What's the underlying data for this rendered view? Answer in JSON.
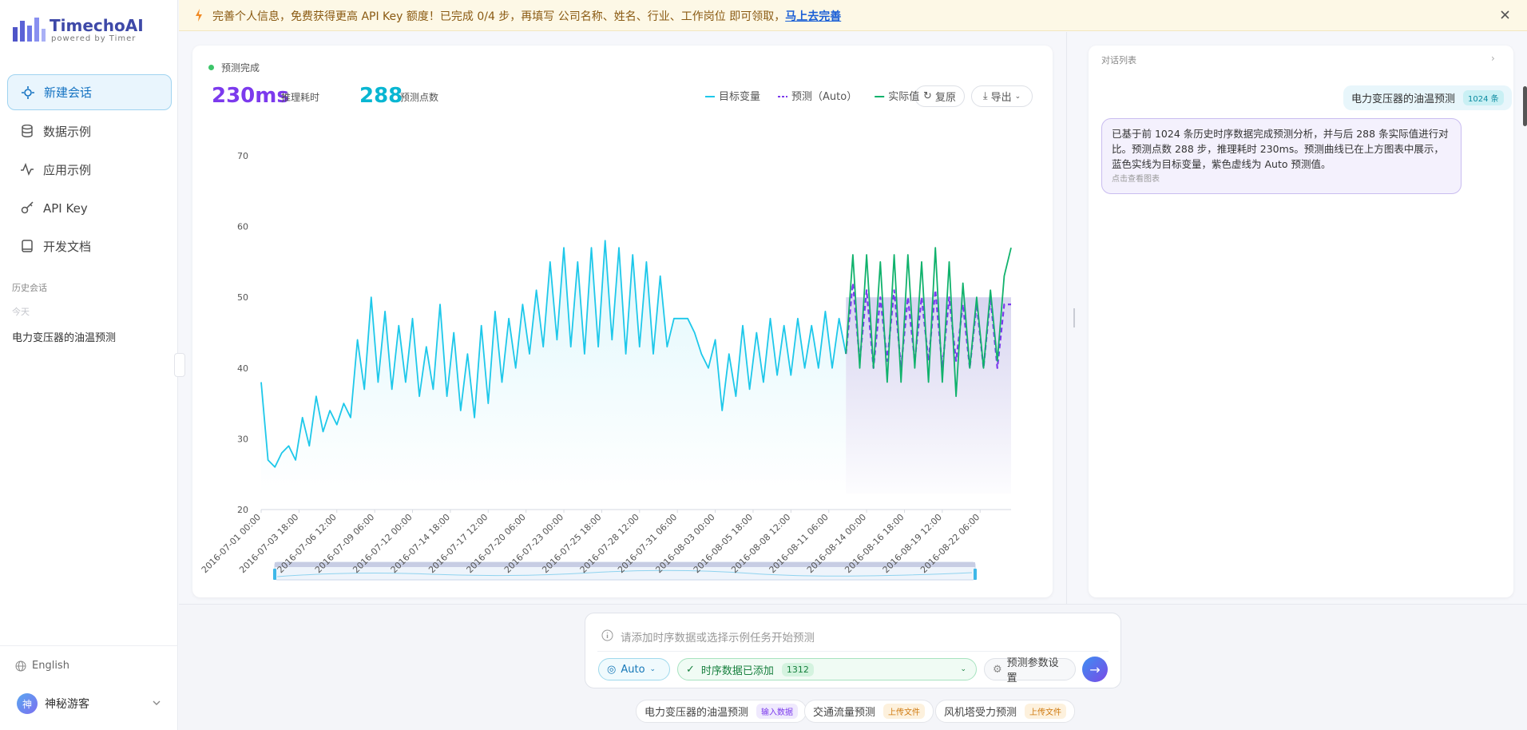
{
  "banner": {
    "text": "完善个人信息，免费获得更高 API Key 额度！已完成 0/4 步，再填写 公司名称、姓名、行业、工作岗位 即可领取，",
    "link": "马上去完善"
  },
  "sidebar": {
    "brand": "TimechoAI",
    "tagline": "powered by Timer",
    "nav": [
      "新建会话",
      "数据示例",
      "应用示例",
      "API Key",
      "开发文档"
    ],
    "history_title": "历史会话",
    "today": "今天",
    "history": [
      "电力变压器的油温预测"
    ],
    "language": "English",
    "user_avatar": "神",
    "user": "神秘游客"
  },
  "chart_panel": {
    "status": "预测完成",
    "stats": [
      {
        "value": "230ms",
        "label": "推理耗时"
      },
      {
        "value": "288",
        "label": "预测点数"
      }
    ],
    "buttons": [
      "复原",
      "导出"
    ]
  },
  "chat": {
    "title": "对话列表",
    "user_message": "电力变压器的油温预测",
    "user_badge": "1024 条",
    "reply": "已基于前 1024 条历史时序数据完成预测分析，并与后 288 条实际值进行对比。预测点数 288 步，推理耗时 230ms。预测曲线已在上方图表中展示，蓝色实线为目标变量，紫色虚线为 Auto 预测值。",
    "reply_hint": "点击查看图表"
  },
  "input": {
    "placeholder": "请添加时序数据或选择示例任务开始预测",
    "model": "Auto",
    "data_status": "时序数据已添加",
    "data_count": "1312",
    "settings": "预测参数设置"
  },
  "examples": [
    {
      "label": "电力变压器的油温预测",
      "tag": "输入数据"
    },
    {
      "label": "交通流量预测",
      "tag": "上传文件"
    },
    {
      "label": "风机塔受力预测",
      "tag": "上传文件"
    }
  ],
  "chart_data": {
    "type": "line",
    "legend": "top-right",
    "grid": false,
    "x": [
      "2016-07-01 00:00",
      "2016-07-01 12:00",
      "2016-07-02 00:00",
      "2016-07-02 12:00",
      "2016-07-03 00:00",
      "2016-07-03 12:00",
      "2016-07-04 00:00",
      "2016-07-04 12:00",
      "2016-07-05 00:00",
      "2016-07-05 12:00",
      "2016-07-06 00:00",
      "2016-07-06 12:00",
      "2016-07-07 00:00",
      "2016-07-07 12:00",
      "2016-07-08 00:00",
      "2016-07-08 12:00",
      "2016-07-09 00:00",
      "2016-07-09 12:00",
      "2016-07-10 00:00",
      "2016-07-10 12:00",
      "2016-07-11 00:00",
      "2016-07-11 12:00",
      "2016-07-12 00:00",
      "2016-07-12 12:00",
      "2016-07-13 00:00",
      "2016-07-13 12:00",
      "2016-07-14 00:00",
      "2016-07-14 12:00",
      "2016-07-15 00:00",
      "2016-07-15 12:00",
      "2016-07-16 00:00",
      "2016-07-16 12:00",
      "2016-07-17 00:00",
      "2016-07-17 12:00",
      "2016-07-18 00:00",
      "2016-07-18 12:00",
      "2016-07-19 00:00",
      "2016-07-19 12:00",
      "2016-07-20 00:00",
      "2016-07-20 12:00",
      "2016-07-21 00:00",
      "2016-07-21 12:00",
      "2016-07-22 00:00",
      "2016-07-22 12:00",
      "2016-07-23 00:00",
      "2016-07-23 12:00",
      "2016-07-24 00:00",
      "2016-07-24 12:00",
      "2016-07-25 00:00",
      "2016-07-25 12:00",
      "2016-07-26 00:00",
      "2016-07-26 12:00",
      "2016-07-27 00:00",
      "2016-07-27 12:00",
      "2016-07-28 00:00",
      "2016-07-28 12:00",
      "2016-07-29 00:00",
      "2016-07-29 12:00",
      "2016-07-30 00:00",
      "2016-07-30 12:00",
      "2016-07-31 00:00",
      "2016-07-31 12:00",
      "2016-08-01 00:00",
      "2016-08-01 12:00",
      "2016-08-02 00:00",
      "2016-08-02 12:00",
      "2016-08-03 00:00",
      "2016-08-03 12:00",
      "2016-08-04 00:00",
      "2016-08-04 12:00",
      "2016-08-05 00:00",
      "2016-08-05 12:00",
      "2016-08-06 00:00",
      "2016-08-06 12:00",
      "2016-08-07 00:00",
      "2016-08-07 12:00",
      "2016-08-08 00:00",
      "2016-08-08 12:00",
      "2016-08-09 00:00",
      "2016-08-09 12:00",
      "2016-08-10 00:00",
      "2016-08-10 12:00",
      "2016-08-11 00:00",
      "2016-08-11 12:00",
      "2016-08-12 00:00",
      "2016-08-12 12:00",
      "2016-08-13 00:00",
      "2016-08-13 12:00",
      "2016-08-14 00:00",
      "2016-08-14 12:00",
      "2016-08-15 00:00",
      "2016-08-15 12:00",
      "2016-08-16 00:00",
      "2016-08-16 12:00",
      "2016-08-17 00:00",
      "2016-08-17 12:00",
      "2016-08-18 00:00",
      "2016-08-18 12:00",
      "2016-08-19 00:00",
      "2016-08-19 12:00",
      "2016-08-20 00:00",
      "2016-08-20 12:00",
      "2016-08-21 00:00",
      "2016-08-21 12:00",
      "2016-08-22 00:00",
      "2016-08-22 12:00",
      "2016-08-23 00:00",
      "2016-08-23 12:00",
      "2016-08-24 00:00",
      "2016-08-24 12:00"
    ],
    "xlim": [
      "2016-07-01 00:00",
      "2016-08-24 12:00"
    ],
    "xticks": [
      "2016-07-01 00:00",
      "2016-07-03 18:00",
      "2016-07-06 12:00",
      "2016-07-09 06:00",
      "2016-07-12 00:00",
      "2016-07-14 18:00",
      "2016-07-17 12:00",
      "2016-07-20 06:00",
      "2016-07-23 00:00",
      "2016-07-25 18:00",
      "2016-07-28 12:00",
      "2016-07-31 06:00",
      "2016-08-03 00:00",
      "2016-08-05 18:00",
      "2016-08-08 12:00",
      "2016-08-11 06:00",
      "2016-08-14 00:00",
      "2016-08-16 18:00",
      "2016-08-19 12:00",
      "2016-08-22 06:00"
    ],
    "ylim": [
      20,
      70
    ],
    "yticks": [
      20,
      30,
      40,
      50,
      60,
      70
    ],
    "series": [
      {
        "name": "目标变量",
        "color": "#1ec8ea",
        "dashed": false,
        "values": [
          38,
          27,
          26,
          28,
          29,
          27,
          33,
          29,
          36,
          31,
          34,
          32,
          35,
          33,
          44,
          37,
          50,
          38,
          48,
          37,
          46,
          38,
          47,
          36,
          43,
          37,
          49,
          36,
          45,
          34,
          42,
          33,
          46,
          35,
          48,
          38,
          47,
          40,
          49,
          42,
          51,
          43,
          55,
          44,
          57,
          43,
          55,
          42,
          57,
          43,
          58,
          44,
          57,
          42,
          56,
          43,
          55,
          42,
          53,
          43,
          47,
          47,
          47,
          45,
          42,
          40,
          44,
          34,
          42,
          36,
          46,
          37,
          45,
          38,
          47,
          39,
          46,
          39,
          47,
          40,
          46,
          40,
          48,
          40,
          47,
          42,
          null,
          null,
          null,
          null,
          null,
          null,
          null,
          null,
          null,
          null,
          null,
          null,
          null,
          null,
          null,
          null,
          null,
          null,
          null,
          null,
          null,
          null,
          null,
          null
        ]
      },
      {
        "name": "预测（Auto）",
        "color": "#7c3aed",
        "dashed": true,
        "values": [
          null,
          null,
          null,
          null,
          null,
          null,
          null,
          null,
          null,
          null,
          null,
          null,
          null,
          null,
          null,
          null,
          null,
          null,
          null,
          null,
          null,
          null,
          null,
          null,
          null,
          null,
          null,
          null,
          null,
          null,
          null,
          null,
          null,
          null,
          null,
          null,
          null,
          null,
          null,
          null,
          null,
          null,
          null,
          null,
          null,
          null,
          null,
          null,
          null,
          null,
          null,
          null,
          null,
          null,
          null,
          null,
          null,
          null,
          null,
          null,
          null,
          null,
          null,
          null,
          null,
          null,
          null,
          null,
          null,
          null,
          null,
          null,
          null,
          null,
          null,
          null,
          null,
          null,
          null,
          null,
          null,
          null,
          null,
          null,
          null,
          42,
          52,
          41,
          51,
          40,
          50,
          41,
          51,
          40,
          50,
          41,
          50,
          41,
          51,
          40,
          50,
          41,
          49,
          40,
          49,
          40,
          50,
          40,
          49,
          49
        ]
      },
      {
        "name": "实际值",
        "color": "#10b26c",
        "dashed": false,
        "values": [
          null,
          null,
          null,
          null,
          null,
          null,
          null,
          null,
          null,
          null,
          null,
          null,
          null,
          null,
          null,
          null,
          null,
          null,
          null,
          null,
          null,
          null,
          null,
          null,
          null,
          null,
          null,
          null,
          null,
          null,
          null,
          null,
          null,
          null,
          null,
          null,
          null,
          null,
          null,
          null,
          null,
          null,
          null,
          null,
          null,
          null,
          null,
          null,
          null,
          null,
          null,
          null,
          null,
          null,
          null,
          null,
          null,
          null,
          null,
          null,
          null,
          null,
          null,
          null,
          null,
          null,
          null,
          null,
          null,
          null,
          null,
          null,
          null,
          null,
          null,
          null,
          null,
          null,
          null,
          null,
          null,
          null,
          null,
          null,
          null,
          42,
          56,
          40,
          56,
          40,
          55,
          38,
          56,
          38,
          56,
          40,
          55,
          38,
          57,
          38,
          55,
          36,
          52,
          40,
          50,
          40,
          51,
          41,
          53,
          57
        ]
      }
    ]
  }
}
